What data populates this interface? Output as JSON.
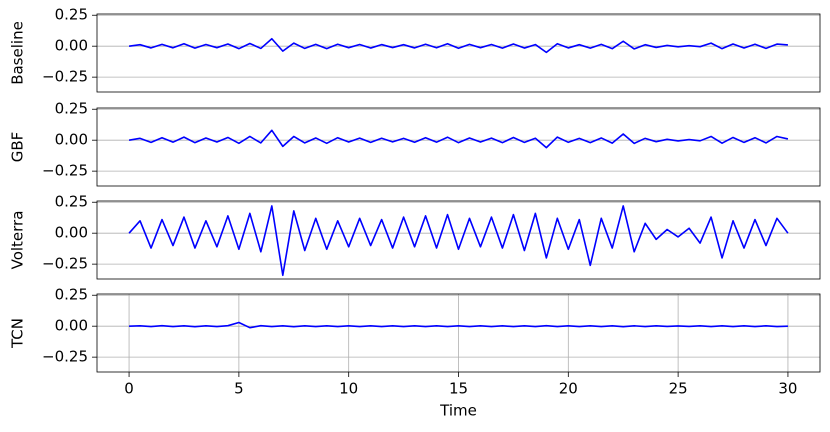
{
  "chart_data": [
    {
      "type": "line",
      "ylabel": "Baseline",
      "x": [
        0,
        0.5,
        1,
        1.5,
        2,
        2.5,
        3,
        3.5,
        4,
        4.5,
        5,
        5.5,
        6,
        6.5,
        7,
        7.5,
        8,
        8.5,
        9,
        9.5,
        10,
        10.5,
        11,
        11.5,
        12,
        12.5,
        13,
        13.5,
        14,
        14.5,
        15,
        15.5,
        16,
        16.5,
        17,
        17.5,
        18,
        18.5,
        19,
        19.5,
        20,
        20.5,
        21,
        21.5,
        22,
        22.5,
        23,
        23.5,
        24,
        24.5,
        25,
        25.5,
        26,
        26.5,
        27,
        27.5,
        28,
        28.5,
        29,
        29.5,
        30
      ],
      "series": [
        {
          "color": "#0000ff",
          "values": [
            0,
            0.012,
            -0.014,
            0.015,
            -0.013,
            0.02,
            -0.016,
            0.014,
            -0.012,
            0.018,
            -0.02,
            0.022,
            -0.018,
            0.06,
            -0.04,
            0.025,
            -0.018,
            0.015,
            -0.02,
            0.016,
            -0.012,
            0.014,
            -0.015,
            0.013,
            -0.011,
            0.012,
            -0.014,
            0.016,
            -0.013,
            0.02,
            -0.017,
            0.015,
            -0.012,
            0.014,
            -0.016,
            0.018,
            -0.015,
            0.013,
            -0.05,
            0.02,
            -0.014,
            0.012,
            -0.016,
            0.015,
            -0.02,
            0.04,
            -0.022,
            0.012,
            -0.01,
            0.006,
            -0.005,
            0.004,
            -0.004,
            0.025,
            -0.02,
            0.018,
            -0.015,
            0.016,
            -0.018,
            0.017,
            0.01
          ]
        }
      ],
      "xlim": [
        -1.46,
        31.46
      ],
      "ylim": [
        -0.37,
        0.26
      ],
      "yticks": [
        0.25,
        {
          "value": 0,
          "label": "0.00"
        },
        {
          "value": -0.25,
          "label": "−0.25"
        }
      ],
      "grid": "y"
    },
    {
      "type": "line",
      "ylabel": "GBF",
      "x": [
        0,
        0.5,
        1,
        1.5,
        2,
        2.5,
        3,
        3.5,
        4,
        4.5,
        5,
        5.5,
        6,
        6.5,
        7,
        7.5,
        8,
        8.5,
        9,
        9.5,
        10,
        10.5,
        11,
        11.5,
        12,
        12.5,
        13,
        13.5,
        14,
        14.5,
        15,
        15.5,
        16,
        16.5,
        17,
        17.5,
        18,
        18.5,
        19,
        19.5,
        20,
        20.5,
        21,
        21.5,
        22,
        22.5,
        23,
        23.5,
        24,
        24.5,
        25,
        25.5,
        26,
        26.5,
        27,
        27.5,
        28,
        28.5,
        29,
        29.5,
        30
      ],
      "series": [
        {
          "color": "#0000ff",
          "values": [
            0,
            0.015,
            -0.018,
            0.02,
            -0.016,
            0.025,
            -0.02,
            0.018,
            -0.015,
            0.022,
            -0.025,
            0.03,
            -0.022,
            0.08,
            -0.05,
            0.03,
            -0.022,
            0.018,
            -0.025,
            0.02,
            -0.015,
            0.017,
            -0.018,
            0.016,
            -0.014,
            0.015,
            -0.017,
            0.02,
            -0.016,
            0.024,
            -0.02,
            0.018,
            -0.015,
            0.017,
            -0.02,
            0.022,
            -0.018,
            0.016,
            -0.06,
            0.025,
            -0.017,
            0.015,
            -0.02,
            0.018,
            -0.024,
            0.05,
            -0.026,
            0.015,
            -0.012,
            0.007,
            -0.006,
            0.005,
            -0.005,
            0.03,
            -0.024,
            0.022,
            -0.018,
            0.02,
            -0.022,
            0.03,
            0.01
          ]
        }
      ],
      "xlim": [
        -1.46,
        31.46
      ],
      "ylim": [
        -0.37,
        0.26
      ],
      "yticks": [
        0.25,
        {
          "value": 0,
          "label": "0.00"
        },
        {
          "value": -0.25,
          "label": "−0.25"
        }
      ],
      "grid": "y"
    },
    {
      "type": "line",
      "ylabel": "Volterra",
      "x": [
        0,
        0.5,
        1,
        1.5,
        2,
        2.5,
        3,
        3.5,
        4,
        4.5,
        5,
        5.5,
        6,
        6.5,
        7,
        7.5,
        8,
        8.5,
        9,
        9.5,
        10,
        10.5,
        11,
        11.5,
        12,
        12.5,
        13,
        13.5,
        14,
        14.5,
        15,
        15.5,
        16,
        16.5,
        17,
        17.5,
        18,
        18.5,
        19,
        19.5,
        20,
        20.5,
        21,
        21.5,
        22,
        22.5,
        23,
        23.5,
        24,
        24.5,
        25,
        25.5,
        26,
        26.5,
        27,
        27.5,
        28,
        28.5,
        29,
        29.5,
        30
      ],
      "series": [
        {
          "color": "#0000ff",
          "values": [
            0,
            0.1,
            -0.12,
            0.11,
            -0.1,
            0.13,
            -0.12,
            0.1,
            -0.11,
            0.14,
            -0.13,
            0.16,
            -0.15,
            0.22,
            -0.34,
            0.18,
            -0.14,
            0.12,
            -0.13,
            0.1,
            -0.11,
            0.12,
            -0.1,
            0.11,
            -0.12,
            0.13,
            -0.11,
            0.14,
            -0.12,
            0.15,
            -0.13,
            0.12,
            -0.11,
            0.13,
            -0.12,
            0.15,
            -0.14,
            0.16,
            -0.2,
            0.12,
            -0.13,
            0.11,
            -0.26,
            0.12,
            -0.12,
            0.22,
            -0.15,
            0.08,
            -0.05,
            0.03,
            -0.03,
            0.04,
            -0.08,
            0.13,
            -0.2,
            0.1,
            -0.12,
            0.11,
            -0.1,
            0.12,
            0
          ]
        }
      ],
      "xlim": [
        -1.46,
        31.46
      ],
      "ylim": [
        -0.37,
        0.26
      ],
      "yticks": [
        0.25,
        {
          "value": 0,
          "label": "0.00"
        },
        {
          "value": -0.25,
          "label": "−0.25"
        }
      ],
      "grid": "y"
    },
    {
      "type": "line",
      "ylabel": "TCN",
      "xlabel": "Time",
      "x": [
        0,
        0.5,
        1,
        1.5,
        2,
        2.5,
        3,
        3.5,
        4,
        4.5,
        5,
        5.5,
        6,
        6.5,
        7,
        7.5,
        8,
        8.5,
        9,
        9.5,
        10,
        10.5,
        11,
        11.5,
        12,
        12.5,
        13,
        13.5,
        14,
        14.5,
        15,
        15.5,
        16,
        16.5,
        17,
        17.5,
        18,
        18.5,
        19,
        19.5,
        20,
        20.5,
        21,
        21.5,
        22,
        22.5,
        23,
        23.5,
        24,
        24.5,
        25,
        25.5,
        26,
        26.5,
        27,
        27.5,
        28,
        28.5,
        29,
        29.5,
        30
      ],
      "series": [
        {
          "color": "#0000ff",
          "values": [
            0,
            0.003,
            -0.003,
            0.004,
            -0.003,
            0.003,
            -0.004,
            0.003,
            -0.003,
            0.004,
            0.03,
            -0.012,
            0.004,
            -0.003,
            0.003,
            -0.004,
            0.003,
            -0.003,
            0.003,
            -0.003,
            0.003,
            -0.003,
            0.003,
            -0.003,
            0.003,
            -0.003,
            0.003,
            -0.003,
            0.003,
            -0.003,
            0.003,
            -0.003,
            0.003,
            -0.003,
            0.003,
            -0.003,
            0.003,
            -0.003,
            0.004,
            -0.003,
            0.003,
            -0.003,
            0.003,
            -0.003,
            0.003,
            -0.004,
            0.003,
            -0.003,
            0.003,
            -0.002,
            0.002,
            -0.002,
            0.003,
            -0.003,
            0.003,
            -0.003,
            0.003,
            -0.003,
            0.003,
            -0.003,
            0
          ]
        }
      ],
      "xlim": [
        -1.46,
        31.46
      ],
      "ylim": [
        -0.37,
        0.26
      ],
      "xticks": [
        0,
        5,
        10,
        15,
        20,
        25,
        30
      ],
      "yticks": [
        0.25,
        {
          "value": 0,
          "label": "0.00"
        },
        {
          "value": -0.25,
          "label": "−0.25"
        }
      ],
      "grid": "both"
    }
  ]
}
